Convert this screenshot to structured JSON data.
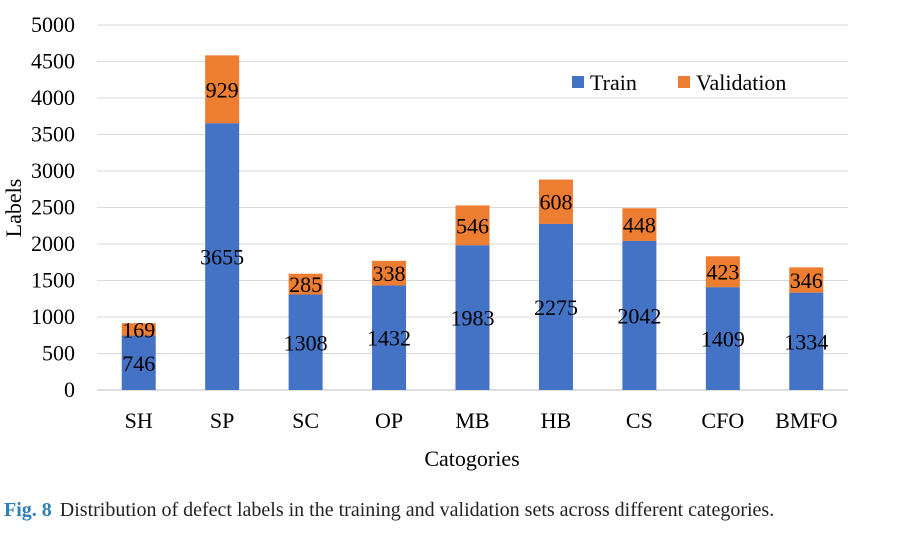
{
  "chart_data": {
    "type": "bar",
    "stacked": true,
    "categories": [
      "SH",
      "SP",
      "SC",
      "OP",
      "MB",
      "HB",
      "CS",
      "CFO",
      "BMFO"
    ],
    "series": [
      {
        "name": "Train",
        "color": "#4472c4",
        "values": [
          746,
          3655,
          1308,
          1432,
          1983,
          2275,
          2042,
          1409,
          1334
        ]
      },
      {
        "name": "Validation",
        "color": "#ed7d31",
        "values": [
          169,
          929,
          285,
          338,
          546,
          608,
          448,
          423,
          346
        ]
      }
    ],
    "xlabel": "Catogories",
    "ylabel": "Labels",
    "ylim": [
      0,
      5000
    ],
    "yticks": [
      0,
      500,
      1000,
      1500,
      2000,
      2500,
      3000,
      3500,
      4000,
      4500,
      5000
    ],
    "grid": true,
    "legend_position": "top-right"
  },
  "caption": {
    "label": "Fig. 8",
    "text": "Distribution of defect labels in the training and validation sets across different categories."
  }
}
